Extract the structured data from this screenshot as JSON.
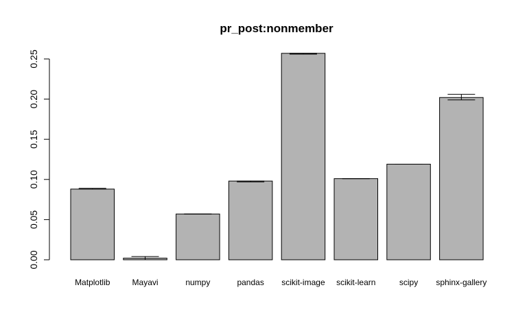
{
  "chart_data": {
    "type": "bar",
    "title": "pr_post:nonmember",
    "xlabel": "",
    "ylabel": "",
    "categories": [
      "Matplotlib",
      "Mayavi",
      "numpy",
      "pandas",
      "scikit-image",
      "scikit-learn",
      "scipy",
      "sphinx-gallery"
    ],
    "values": [
      0.088,
      0.002,
      0.057,
      0.098,
      0.257,
      0.101,
      0.119,
      0.202
    ],
    "error_low": [
      0.088,
      0.0,
      0.057,
      0.097,
      0.256,
      0.101,
      0.119,
      0.199
    ],
    "error_high": [
      0.089,
      0.004,
      0.057,
      0.098,
      0.257,
      0.101,
      0.119,
      0.206
    ],
    "ylim": [
      0,
      0.25
    ],
    "y_ticks": [
      "0.00",
      "0.05",
      "0.10",
      "0.15",
      "0.20",
      "0.25"
    ],
    "grid": false,
    "legend": "none",
    "bar_color": "#b3b3b3"
  }
}
